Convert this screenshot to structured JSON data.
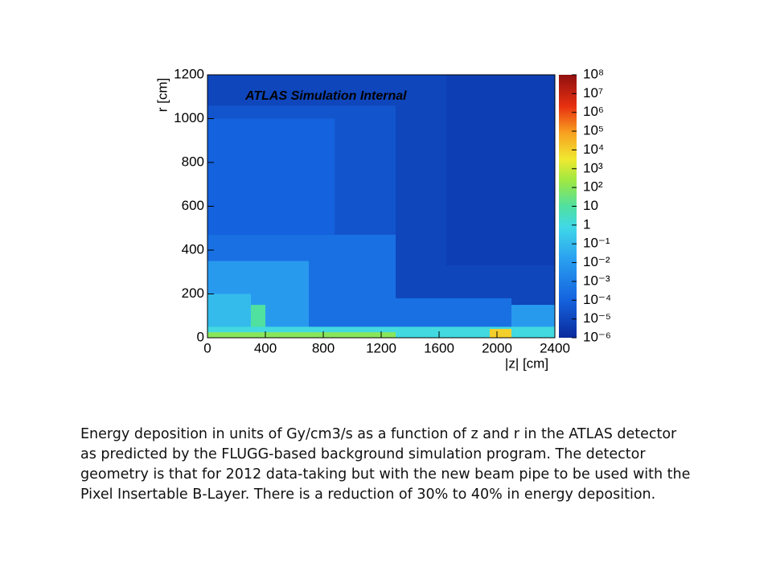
{
  "chart_data": {
    "type": "heatmap",
    "title": "ATLAS Simulation Internal",
    "x_label": "|z| [cm]",
    "y_label": "r [cm]",
    "xlim": [
      0,
      2400
    ],
    "xticks": [
      0,
      400,
      800,
      1200,
      1600,
      2000,
      2400
    ],
    "ylim": [
      0,
      1200
    ],
    "yticks": [
      0,
      200,
      400,
      600,
      800,
      1000,
      1200
    ],
    "zlim": [
      1e-06,
      100000000
    ],
    "zlog": true,
    "zticks": [
      {
        "value": 100000000,
        "label": "10⁸"
      },
      {
        "value": 10000000,
        "label": "10⁷"
      },
      {
        "value": 1000000,
        "label": "10⁶"
      },
      {
        "value": 100000,
        "label": "10⁵"
      },
      {
        "value": 10000,
        "label": "10⁴"
      },
      {
        "value": 1000,
        "label": "10³"
      },
      {
        "value": 100,
        "label": "10²"
      },
      10,
      1,
      {
        "value": 0.1,
        "label": "10⁻¹"
      },
      {
        "value": 0.01,
        "label": "10⁻²"
      },
      {
        "value": 0.001,
        "label": "10⁻³"
      },
      {
        "value": 0.0001,
        "label": "10⁻⁴"
      },
      {
        "value": 1e-05,
        "label": "10⁻⁵"
      },
      {
        "value": 1e-06,
        "label": "10⁻⁶"
      }
    ],
    "regions": [
      {
        "z": [
          0,
          2400
        ],
        "r": [
          0,
          1200
        ],
        "value": 1e-05
      },
      {
        "z": [
          0,
          1300
        ],
        "r": [
          460,
          1060
        ],
        "value": 3e-05
      },
      {
        "z": [
          0,
          880
        ],
        "r": [
          470,
          1000
        ],
        "value": 0.0001
      },
      {
        "z": [
          0,
          1300
        ],
        "r": [
          0,
          470
        ],
        "value": 0.0003
      },
      {
        "z": [
          1300,
          2100
        ],
        "r": [
          0,
          180
        ],
        "value": 0.0003
      },
      {
        "z": [
          2100,
          2400
        ],
        "r": [
          0,
          150
        ],
        "value": 0.01
      },
      {
        "z": [
          0,
          700
        ],
        "r": [
          0,
          350
        ],
        "value": 0.01
      },
      {
        "z": [
          0,
          300
        ],
        "r": [
          0,
          200
        ],
        "value": 0.1
      },
      {
        "z": [
          300,
          400
        ],
        "r": [
          0,
          150
        ],
        "value": 10
      },
      {
        "z": [
          0,
          2400
        ],
        "r": [
          0,
          50
        ],
        "value": 1
      },
      {
        "z": [
          0,
          1300
        ],
        "r": [
          0,
          25
        ],
        "value": 100
      },
      {
        "z": [
          1950,
          2100
        ],
        "r": [
          0,
          40
        ],
        "value": 10000
      },
      {
        "z": [
          1650,
          2400
        ],
        "r": [
          330,
          1200
        ],
        "value": 5e-06
      }
    ]
  },
  "caption": "Energy deposition in units of Gy/cm3/s as a function of z and r in the ATLAS detector as predicted by the FLUGG-based background simulation program. The detector geometry is that for 2012 data-taking but with the new beam pipe to be used with the Pixel Insertable B-Layer. There is a reduction of 30% to 40% in energy deposition."
}
